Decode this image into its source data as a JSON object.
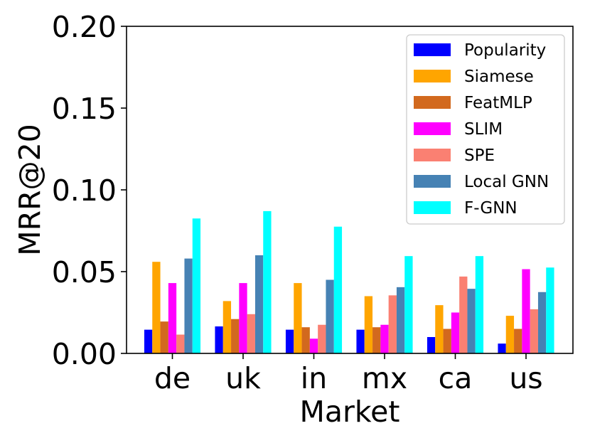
{
  "chart_data": {
    "type": "bar",
    "xlabel": "Market",
    "ylabel": "MRR@20",
    "ylim": [
      0,
      0.2
    ],
    "yticks": [
      "0.00",
      "0.05",
      "0.10",
      "0.15",
      "0.20"
    ],
    "ytick_values": [
      0,
      0.05,
      0.1,
      0.15,
      0.2
    ],
    "categories": [
      "de",
      "uk",
      "in",
      "mx",
      "ca",
      "us"
    ],
    "grid": false,
    "legend_position": "top-right",
    "series": [
      {
        "name": "Popularity",
        "color": "#0000ff",
        "values": [
          0.0145,
          0.0165,
          0.0145,
          0.0145,
          0.01,
          0.006
        ]
      },
      {
        "name": "Siamese",
        "color": "#ffa500",
        "values": [
          0.056,
          0.032,
          0.043,
          0.035,
          0.0295,
          0.023
        ]
      },
      {
        "name": "FeatMLP",
        "color": "#d2691e",
        "values": [
          0.0195,
          0.021,
          0.016,
          0.016,
          0.015,
          0.015
        ]
      },
      {
        "name": "SLIM",
        "color": "#ff00ff",
        "values": [
          0.043,
          0.043,
          0.009,
          0.0175,
          0.025,
          0.0515
        ]
      },
      {
        "name": "SPE",
        "color": "#fa8072",
        "values": [
          0.0115,
          0.024,
          0.0175,
          0.0355,
          0.047,
          0.027
        ]
      },
      {
        "name": "Local GNN",
        "color": "#4682b4",
        "values": [
          0.058,
          0.06,
          0.045,
          0.0405,
          0.0395,
          0.0375
        ]
      },
      {
        "name": "F-GNN",
        "color": "#00ffff",
        "values": [
          0.0825,
          0.087,
          0.0775,
          0.0595,
          0.0595,
          0.0525
        ]
      }
    ]
  }
}
